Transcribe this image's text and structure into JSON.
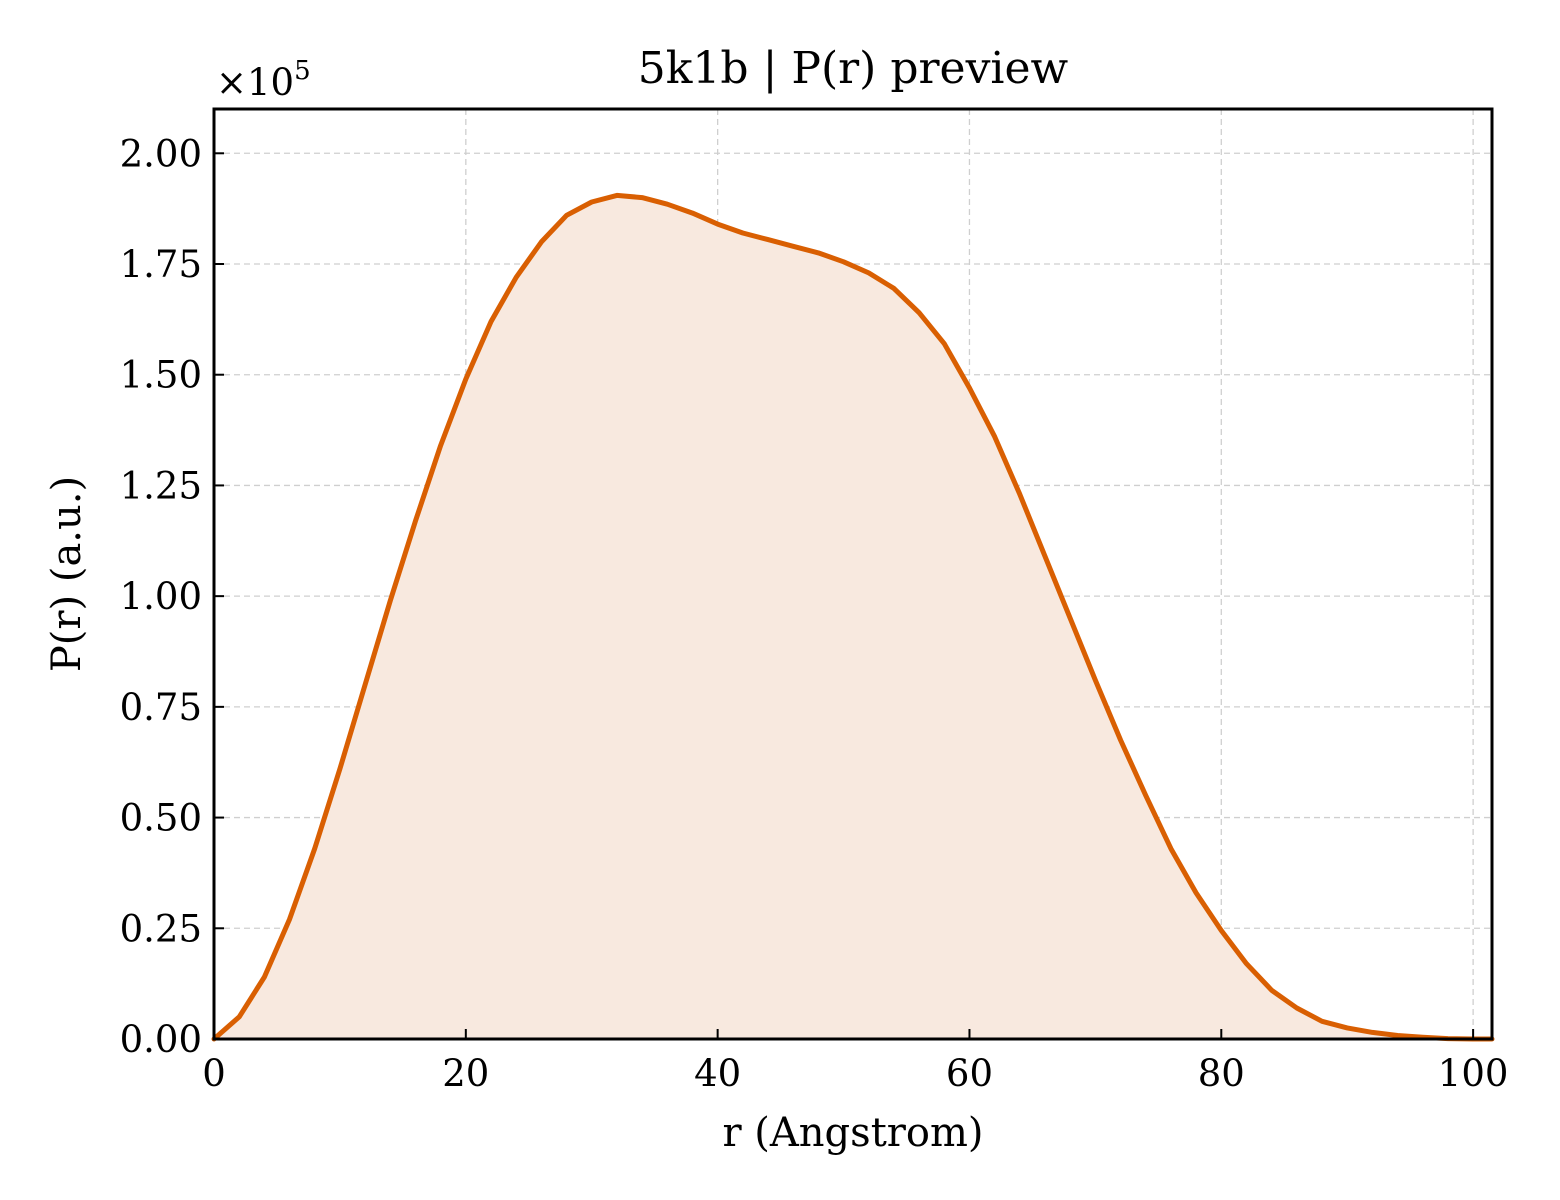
{
  "chart_data": {
    "type": "area",
    "title": "5k1b | P(r) preview",
    "xlabel": "r (Angstrom)",
    "ylabel": "P(r) (a.u.)",
    "y_scale_label": "×10",
    "y_scale_exponent": "5",
    "xlim": [
      0,
      101.5
    ],
    "ylim": [
      0,
      2.1
    ],
    "xticks": [
      0,
      20,
      40,
      60,
      80,
      100
    ],
    "xtick_labels": [
      "0",
      "20",
      "40",
      "60",
      "80",
      "100"
    ],
    "yticks": [
      0,
      0.25,
      0.5,
      0.75,
      1.0,
      1.25,
      1.5,
      1.75,
      2.0
    ],
    "ytick_labels": [
      "0.00",
      "0.25",
      "0.50",
      "0.75",
      "1.00",
      "1.25",
      "1.50",
      "1.75",
      "2.00"
    ],
    "grid": true,
    "colors": {
      "line": "#d95f02",
      "fill": "#f8e9df"
    },
    "series": [
      {
        "x": [
          0,
          2,
          4,
          6,
          8,
          10,
          12,
          14,
          16,
          18,
          20,
          22,
          24,
          26,
          28,
          30,
          32,
          34,
          36,
          38,
          40,
          42,
          44,
          46,
          48,
          50,
          52,
          54,
          56,
          58,
          60,
          62,
          64,
          66,
          68,
          70,
          72,
          74,
          76,
          78,
          80,
          82,
          84,
          86,
          88,
          90,
          92,
          94,
          96,
          98,
          100,
          101.5
        ],
        "y": [
          0,
          0.05,
          0.14,
          0.27,
          0.43,
          0.61,
          0.8,
          0.99,
          1.17,
          1.34,
          1.49,
          1.62,
          1.72,
          1.8,
          1.86,
          1.89,
          1.905,
          1.9,
          1.885,
          1.865,
          1.84,
          1.82,
          1.805,
          1.79,
          1.775,
          1.755,
          1.73,
          1.695,
          1.64,
          1.57,
          1.47,
          1.36,
          1.23,
          1.09,
          0.95,
          0.81,
          0.675,
          0.55,
          0.43,
          0.33,
          0.245,
          0.17,
          0.11,
          0.07,
          0.04,
          0.025,
          0.015,
          0.008,
          0.004,
          0.001,
          0,
          0
        ]
      }
    ]
  }
}
